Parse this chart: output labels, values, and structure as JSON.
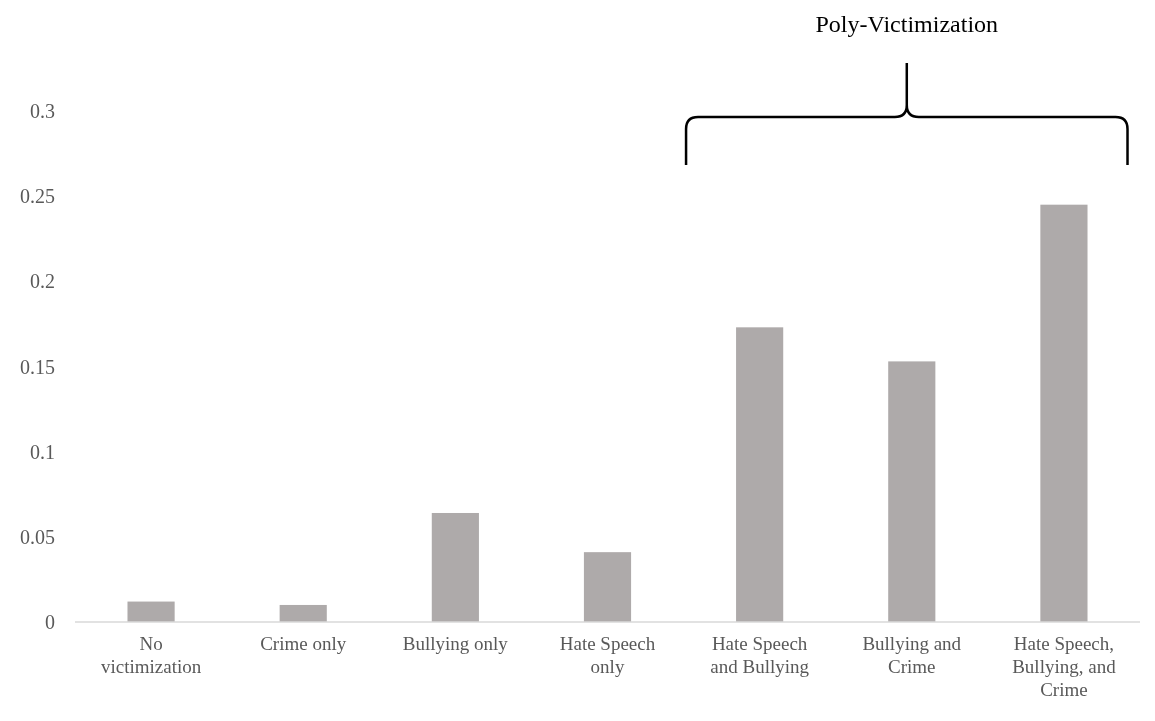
{
  "chart_data": {
    "type": "bar",
    "categories": [
      "No victimization",
      "Crime only",
      "Bullying only",
      "Hate Speech only",
      "Hate Speech and Bullying",
      "Bullying and Crime",
      "Hate Speech, Bullying, and Crime"
    ],
    "values": [
      0.012,
      0.01,
      0.064,
      0.041,
      0.173,
      0.153,
      0.245
    ],
    "color": "#aeaaaa",
    "ylim": [
      0,
      0.3
    ],
    "yticks": [
      0,
      0.05,
      0.1,
      0.15,
      0.2,
      0.25,
      0.3
    ],
    "grid": false,
    "annotations": [
      "Poly-Victimization"
    ]
  }
}
